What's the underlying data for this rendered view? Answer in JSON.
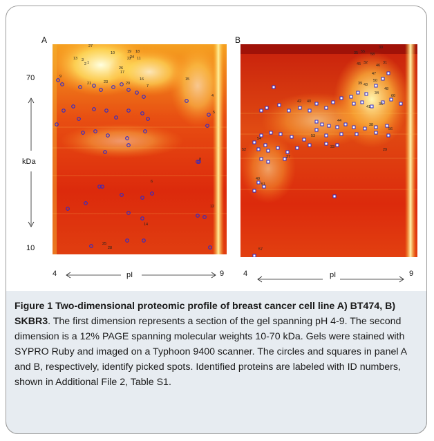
{
  "figure": {
    "panel_a_letter": "A",
    "panel_b_letter": "B",
    "y_top_tick": "70",
    "y_bottom_tick": "10",
    "y_axis_label": "kDa",
    "ph_low_a": "4",
    "ph_high_a": "9",
    "ph_label_a": "pI",
    "ph_low_b": "4",
    "ph_high_b": "9",
    "ph_label_b": "pI",
    "spot_labels_a": [
      "27",
      "13",
      "3",
      "2",
      "1",
      "10",
      "19",
      "18",
      "24",
      "11",
      "22",
      "26",
      "17",
      "9",
      "21",
      "23",
      "20",
      "16",
      "7",
      "15",
      "4",
      "5",
      "8",
      "6",
      "12",
      "14",
      "25",
      "28"
    ],
    "spot_labels_b": [
      "30",
      "35",
      "55",
      "58",
      "45",
      "32",
      "46",
      "31",
      "47",
      "39",
      "43",
      "50",
      "48",
      "34",
      "60",
      "36",
      "41",
      "40",
      "38",
      "44",
      "42",
      "56",
      "54",
      "53",
      "33",
      "29",
      "52",
      "57",
      "37",
      "49",
      "51"
    ]
  },
  "caption": {
    "bold": "Figure 1 Two-dimensional proteomic profile of breast cancer cell line A) BT474, B) SKBR3",
    "body": ". The first dimension represents a section of the gel spanning pH 4-9. The second dimension is a 12% PAGE spanning molecular weights 10-70 kDa. Gels were stained with SYPRO Ruby and imaged on a Typhoon 9400 scanner. The circles and squares in panel A and B, respectively, identify picked spots. Identified proteins are labeled with ID numbers, shown in Additional File 2, Table S1."
  }
}
